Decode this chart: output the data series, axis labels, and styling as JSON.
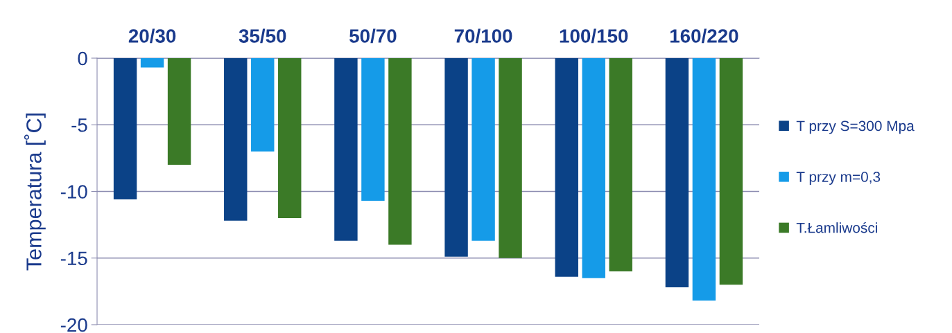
{
  "chart_data": {
    "type": "bar",
    "ylabel": "Temperatura [˚C]",
    "categories": [
      "20/30",
      "35/50",
      "50/70",
      "70/100",
      "100/150",
      "160/220"
    ],
    "series": [
      {
        "name": "T przy S=300 Mpa",
        "color": "#0b4287",
        "values": [
          -10.6,
          -12.2,
          -13.7,
          -14.9,
          -16.4,
          -17.2
        ]
      },
      {
        "name": "T przy m=0,3",
        "color": "#159be8",
        "values": [
          -0.7,
          -7,
          -10.7,
          -13.7,
          -16.5,
          -18.2
        ]
      },
      {
        "name": "T.Łamliwości",
        "color": "#3b7a27",
        "values": [
          -8,
          -12,
          -14,
          -15,
          -16,
          -17
        ]
      }
    ],
    "ylim": [
      -20,
      0
    ],
    "yticks": [
      -20,
      -15,
      -10,
      -5,
      0
    ],
    "grid": "y",
    "legend": "right"
  }
}
